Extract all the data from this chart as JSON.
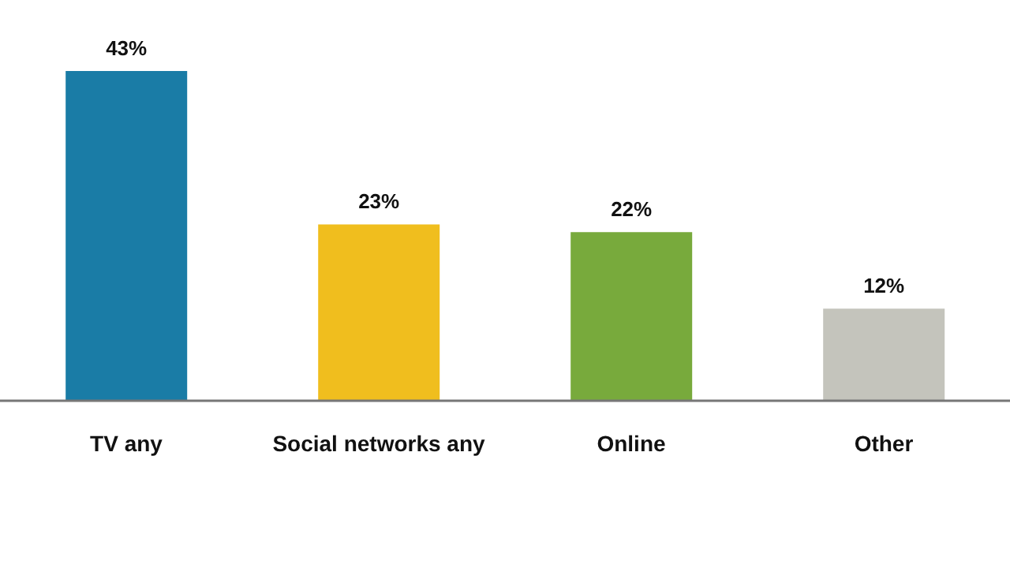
{
  "chart_data": {
    "type": "bar",
    "categories": [
      "TV any",
      "Social networks any",
      "Online",
      "Other"
    ],
    "values": [
      43,
      23,
      22,
      12
    ],
    "value_labels": [
      "43%",
      "23%",
      "22%",
      "12%"
    ],
    "colors": [
      "#1a7ca6",
      "#f0be1e",
      "#78aa3c",
      "#c4c4bc"
    ]
  }
}
